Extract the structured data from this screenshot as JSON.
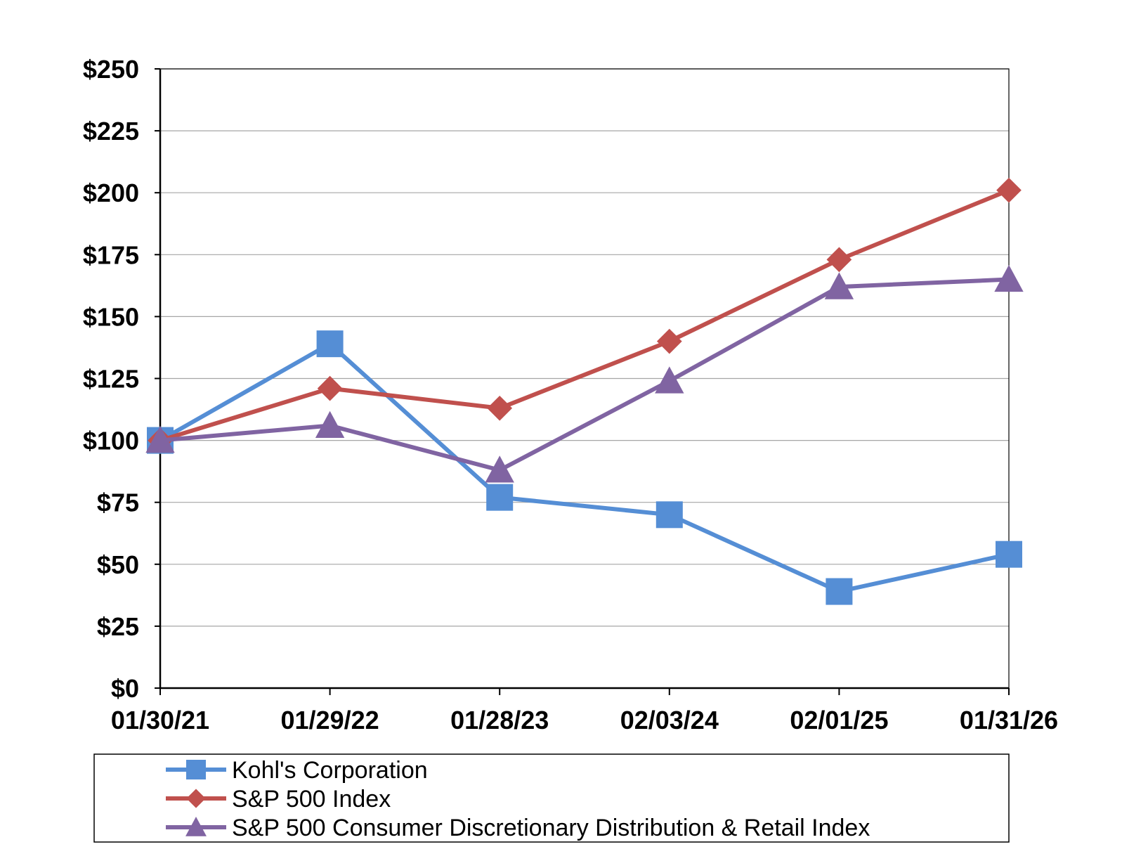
{
  "chart_data": {
    "type": "line",
    "title": "",
    "xlabel": "",
    "ylabel": "",
    "categories": [
      "01/30/21",
      "01/29/22",
      "01/28/23",
      "02/03/24",
      "02/01/25",
      "01/31/26"
    ],
    "y_ticks": [
      "$0",
      "$25",
      "$50",
      "$75",
      "$100",
      "$125",
      "$150",
      "$175",
      "$200",
      "$225",
      "$250"
    ],
    "ylim": [
      0,
      250
    ],
    "grid": true,
    "legend_position": "bottom",
    "series": [
      {
        "name": "Kohl's Corporation",
        "values": [
          100,
          139,
          77,
          70,
          39,
          54
        ],
        "color": "#558ED5",
        "marker": "square"
      },
      {
        "name": "S&P 500 Index",
        "values": [
          100,
          121,
          113,
          140,
          173,
          201
        ],
        "color": "#C0504D",
        "marker": "diamond"
      },
      {
        "name": "S&P 500 Consumer Discretionary Distribution & Retail Index",
        "values": [
          100,
          106,
          88,
          124,
          162,
          165
        ],
        "color": "#8064A2",
        "marker": "triangle"
      }
    ]
  }
}
